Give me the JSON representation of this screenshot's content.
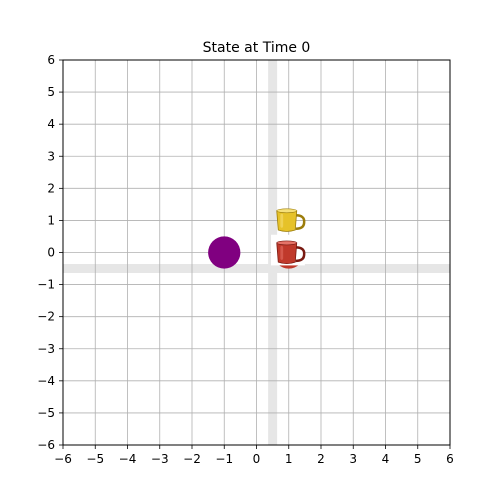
{
  "chart_data": {
    "type": "scatter",
    "title": "State at Time 0",
    "xlabel": "",
    "ylabel": "",
    "xlim": [
      -6,
      6
    ],
    "ylim": [
      -6,
      6
    ],
    "grid": true,
    "x_ticks": [
      -6,
      -5,
      -4,
      -3,
      -2,
      -1,
      0,
      1,
      2,
      3,
      4,
      5,
      6
    ],
    "y_ticks": [
      -6,
      -5,
      -4,
      -3,
      -2,
      -1,
      0,
      1,
      2,
      3,
      4,
      5,
      6
    ],
    "x_tick_labels": [
      "−6",
      "−5",
      "−4",
      "−3",
      "−2",
      "−1",
      "0",
      "1",
      "2",
      "3",
      "4",
      "5",
      "6"
    ],
    "y_tick_labels": [
      "−6",
      "−5",
      "−4",
      "−3",
      "−2",
      "−1",
      "0",
      "1",
      "2",
      "3",
      "4",
      "5",
      "6"
    ],
    "walls": [
      {
        "orientation": "vertical",
        "x": 0.5,
        "color": "#e6e6e6"
      },
      {
        "orientation": "horizontal",
        "y": -0.5,
        "color": "#e6e6e6"
      }
    ],
    "points": [
      {
        "x": -1,
        "y": 0,
        "marker": "circle",
        "color": "#800080"
      },
      {
        "x": 1,
        "y": 0,
        "marker": "red-mug-icon",
        "color": "#c0392b"
      },
      {
        "x": 1,
        "y": 1,
        "marker": "yellow-mug-icon",
        "color": "#e6c229"
      }
    ]
  }
}
